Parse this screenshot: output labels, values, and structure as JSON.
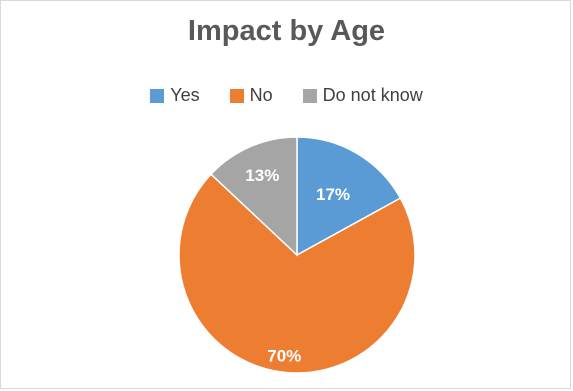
{
  "chart_data": {
    "type": "pie",
    "title": "Impact by Age",
    "legend_position": "top",
    "categories": [
      "Yes",
      "No",
      "Do not know"
    ],
    "values": [
      17,
      70,
      13
    ],
    "labels": [
      "17%",
      "70%",
      "13%"
    ],
    "colors": [
      "#5b9bd5",
      "#ed7d31",
      "#a5a5a5"
    ],
    "start_angle": "12 o'clock",
    "direction": "clockwise"
  }
}
